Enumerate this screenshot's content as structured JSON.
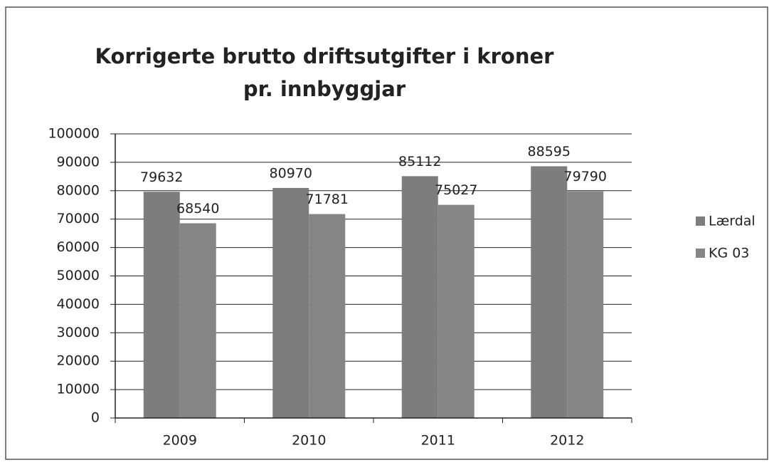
{
  "chart_data": {
    "type": "bar",
    "title": "Korrigerte brutto driftsutgifter i kroner pr. innbyggjar",
    "categories": [
      "2009",
      "2010",
      "2011",
      "2012"
    ],
    "series": [
      {
        "name": "Lærdal",
        "color": "#7d7d7d",
        "values": [
          79632,
          80970,
          85112,
          88595
        ]
      },
      {
        "name": "KG 03",
        "color": "#858585",
        "values": [
          68540,
          71781,
          75027,
          79790
        ]
      }
    ],
    "ylim": [
      0,
      100000
    ],
    "yticks": [
      0,
      10000,
      20000,
      30000,
      40000,
      50000,
      60000,
      70000,
      80000,
      90000,
      100000
    ],
    "grid": true,
    "legend": "right"
  }
}
